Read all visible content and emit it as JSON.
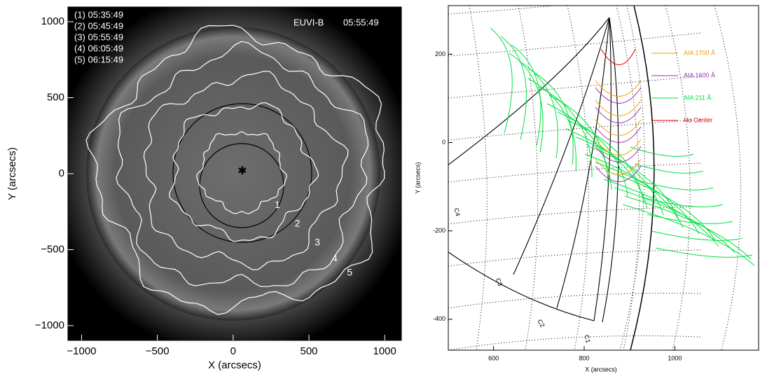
{
  "chart_data": [
    {
      "type": "image",
      "title": "EUVI-B",
      "subtitle": "05:55:49",
      "xlabel": "X (arcsecs)",
      "ylabel": "Y (arcsecs)",
      "xlim": [
        -1090,
        1110
      ],
      "ylim": [
        -1097,
        1097
      ],
      "xticks": [
        {
          "value": -1000,
          "label": "−1000"
        },
        {
          "value": -500,
          "label": "−500"
        },
        0,
        500,
        1000
      ],
      "yticks": [
        {
          "value": -1000,
          "label": "−1000"
        },
        {
          "value": -500,
          "label": "−500"
        },
        0,
        500,
        1000
      ],
      "annotations": [
        "(1) 05:35:49",
        "(2) 05:45:49",
        "(3) 05:55:49",
        "(4) 06:05:49",
        "(5) 06:15:49"
      ],
      "contour_labels": [
        "1",
        "2",
        "3",
        "4",
        "5"
      ]
    },
    {
      "type": "line",
      "xlabel": "X (arcsecs)",
      "ylabel": "Y (arcsecs)",
      "xlim": [
        500,
        1185
      ],
      "ylim": [
        -470,
        310
      ],
      "xticks": [
        600,
        800,
        1000
      ],
      "yticks": [
        -400,
        -200,
        0,
        200
      ],
      "legend": [
        {
          "name": "AIA 1700 Å",
          "color": "#f0a000"
        },
        {
          "name": "AIA 1600 Å",
          "color": "#9b30b0"
        },
        {
          "name": "AIA  211 Å",
          "color": "#00e040"
        },
        {
          "name": "Hα Center",
          "color": "#e00000"
        }
      ],
      "annotations": [
        "C1",
        "C2",
        "C3",
        "C4"
      ]
    }
  ]
}
